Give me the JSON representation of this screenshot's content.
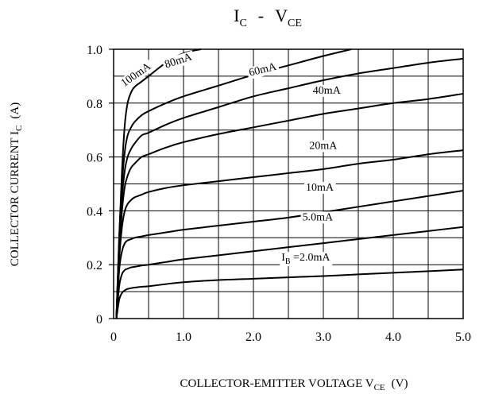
{
  "chart_data": {
    "type": "line",
    "title": {
      "main1": "I",
      "sub1": "C",
      "dash": "-",
      "main2": "V",
      "sub2": "CE"
    },
    "xlabel": {
      "text": "COLLECTOR-EMITTER VOLTAGE V",
      "sub": "CE",
      "unit": "(V)"
    },
    "ylabel": {
      "text": "COLLECTOR CURRENT I",
      "sub": "C",
      "unit": "(A)"
    },
    "xlim": [
      0,
      5.0
    ],
    "ylim": [
      0,
      1.0
    ],
    "x_ticks": [
      {
        "value": 0,
        "label": "0"
      },
      {
        "value": 1,
        "label": "1.0"
      },
      {
        "value": 2,
        "label": "2.0"
      },
      {
        "value": 3,
        "label": "3.0"
      },
      {
        "value": 4,
        "label": "4.0"
      },
      {
        "value": 5,
        "label": "5.0"
      }
    ],
    "y_ticks": [
      {
        "value": 0,
        "label": "0"
      },
      {
        "value": 0.2,
        "label": "0.2"
      },
      {
        "value": 0.4,
        "label": "0.4"
      },
      {
        "value": 0.6,
        "label": "0.6"
      },
      {
        "value": 0.8,
        "label": "0.8"
      },
      {
        "value": 1.0,
        "label": "1.0"
      }
    ],
    "grid": true,
    "grid_step_x": 0.5,
    "grid_step_y": 0.1,
    "series": [
      {
        "label": "100mA",
        "x": [
          0.04,
          0.08,
          0.12,
          0.16,
          0.2,
          0.25,
          0.3,
          0.4,
          0.5,
          0.75,
          1.0,
          1.25
        ],
        "y": [
          0.0,
          0.3,
          0.55,
          0.72,
          0.8,
          0.84,
          0.86,
          0.88,
          0.9,
          0.95,
          0.985,
          1.0
        ]
      },
      {
        "label": "80mA",
        "x": [
          0.04,
          0.08,
          0.12,
          0.16,
          0.2,
          0.25,
          0.3,
          0.4,
          0.5,
          0.75,
          1.0,
          1.5,
          2.0,
          2.5,
          3.0,
          3.4
        ],
        "y": [
          0.0,
          0.3,
          0.5,
          0.62,
          0.68,
          0.71,
          0.73,
          0.755,
          0.77,
          0.8,
          0.825,
          0.865,
          0.905,
          0.94,
          0.975,
          1.0
        ]
      },
      {
        "label": "60mA",
        "x": [
          0.04,
          0.08,
          0.12,
          0.16,
          0.2,
          0.25,
          0.3,
          0.4,
          0.5,
          0.75,
          1.0,
          1.5,
          2.0,
          2.5,
          3.0,
          3.5,
          4.0,
          4.5,
          5.0
        ],
        "y": [
          0.0,
          0.28,
          0.45,
          0.55,
          0.6,
          0.63,
          0.65,
          0.68,
          0.69,
          0.72,
          0.745,
          0.785,
          0.825,
          0.855,
          0.885,
          0.91,
          0.93,
          0.95,
          0.965
        ]
      },
      {
        "label": "40mA",
        "x": [
          0.04,
          0.08,
          0.12,
          0.16,
          0.2,
          0.25,
          0.3,
          0.4,
          0.5,
          0.75,
          1.0,
          1.5,
          2.0,
          2.5,
          3.0,
          3.5,
          4.0,
          4.5,
          5.0
        ],
        "y": [
          0.0,
          0.25,
          0.4,
          0.49,
          0.53,
          0.56,
          0.575,
          0.6,
          0.61,
          0.635,
          0.655,
          0.685,
          0.71,
          0.735,
          0.76,
          0.78,
          0.8,
          0.815,
          0.835
        ]
      },
      {
        "label": "20mA",
        "x": [
          0.04,
          0.08,
          0.12,
          0.16,
          0.2,
          0.25,
          0.3,
          0.4,
          0.5,
          0.75,
          1.0,
          1.5,
          2.0,
          2.5,
          3.0,
          3.5,
          4.0,
          4.5,
          5.0
        ],
        "y": [
          0.0,
          0.22,
          0.34,
          0.4,
          0.425,
          0.44,
          0.45,
          0.46,
          0.47,
          0.485,
          0.495,
          0.51,
          0.525,
          0.54,
          0.555,
          0.575,
          0.59,
          0.61,
          0.625
        ]
      },
      {
        "label": "10mA",
        "x": [
          0.04,
          0.08,
          0.12,
          0.16,
          0.2,
          0.25,
          0.3,
          0.4,
          0.5,
          0.75,
          1.0,
          1.5,
          2.0,
          2.5,
          3.0,
          3.5,
          4.0,
          4.5,
          5.0
        ],
        "y": [
          0.0,
          0.18,
          0.25,
          0.28,
          0.29,
          0.295,
          0.3,
          0.305,
          0.31,
          0.32,
          0.33,
          0.345,
          0.36,
          0.375,
          0.395,
          0.415,
          0.435,
          0.455,
          0.475
        ]
      },
      {
        "label": "5.0mA",
        "x": [
          0.04,
          0.08,
          0.12,
          0.16,
          0.2,
          0.25,
          0.3,
          0.4,
          0.5,
          0.75,
          1.0,
          1.5,
          2.0,
          2.5,
          3.0,
          3.5,
          4.0,
          4.5,
          5.0
        ],
        "y": [
          0.0,
          0.12,
          0.165,
          0.18,
          0.185,
          0.19,
          0.192,
          0.197,
          0.2,
          0.21,
          0.22,
          0.235,
          0.25,
          0.265,
          0.28,
          0.295,
          0.31,
          0.325,
          0.34
        ]
      },
      {
        "label": "IB=2.0mA",
        "x": [
          0.04,
          0.08,
          0.12,
          0.16,
          0.2,
          0.25,
          0.3,
          0.4,
          0.5,
          0.75,
          1.0,
          1.5,
          2.0,
          2.5,
          3.0,
          3.5,
          4.0,
          4.5,
          5.0
        ],
        "y": [
          0.0,
          0.07,
          0.095,
          0.105,
          0.11,
          0.113,
          0.115,
          0.118,
          0.12,
          0.128,
          0.135,
          0.143,
          0.148,
          0.153,
          0.158,
          0.164,
          0.17,
          0.176,
          0.182
        ]
      }
    ],
    "annotations": [
      {
        "text": "100mA",
        "x": 0.15,
        "y": 0.86,
        "rotate": -35
      },
      {
        "text": "80mA",
        "x": 0.75,
        "y": 0.93,
        "rotate": -18
      },
      {
        "text": "60mA",
        "x": 1.95,
        "y": 0.9,
        "rotate": -14
      },
      {
        "text": "40mA",
        "x": 2.85,
        "y": 0.835,
        "rotate": 0
      },
      {
        "text": "20mA",
        "x": 2.8,
        "y": 0.63,
        "rotate": 0
      },
      {
        "text": "10mA",
        "x": 2.75,
        "y": 0.475,
        "rotate": 0
      },
      {
        "text": "5.0mA",
        "x": 2.7,
        "y": 0.365,
        "rotate": 0
      },
      {
        "main": "I",
        "sub": "B",
        "suffix": " =2.0mA",
        "x": 2.4,
        "y": 0.215,
        "rotate": 0
      }
    ]
  }
}
